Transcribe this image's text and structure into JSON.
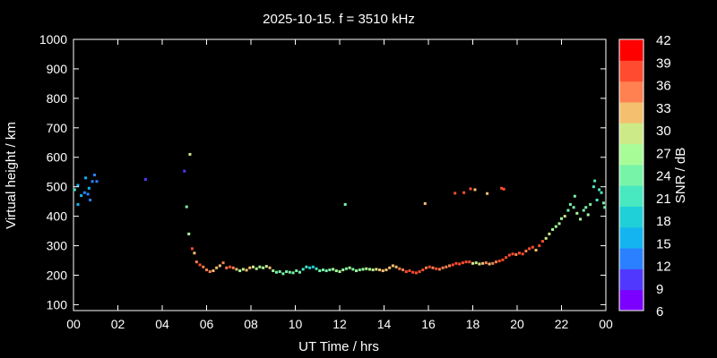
{
  "chart_data": {
    "type": "scatter",
    "title": "2025-10-15. f = 3510 kHz",
    "xlabel": "UT Time / hrs",
    "ylabel": "Virtual height / km",
    "xlim": [
      0,
      24
    ],
    "ylim": [
      80,
      1000
    ],
    "x_ticks": [
      "00",
      "02",
      "04",
      "06",
      "08",
      "10",
      "12",
      "14",
      "16",
      "18",
      "20",
      "22",
      "00"
    ],
    "y_ticks": [
      100,
      200,
      300,
      400,
      500,
      600,
      700,
      800,
      900,
      1000
    ],
    "grid": false,
    "colorbar": {
      "label": "SNR / dB",
      "range": [
        6,
        42
      ],
      "ticks": [
        6,
        9,
        12,
        15,
        18,
        21,
        24,
        27,
        30,
        33,
        36,
        39,
        42
      ],
      "colors": [
        "#7b00ff",
        "#5038ff",
        "#2a80ff",
        "#14b4f0",
        "#20d0d8",
        "#48e8c0",
        "#78f4a8",
        "#a8fc98",
        "#ccea88",
        "#f4c070",
        "#ff8050",
        "#ff4c30",
        "#ff0000"
      ]
    },
    "series": [
      {
        "points": [
          [
            0.05,
            490,
            20
          ],
          [
            0.2,
            505,
            15
          ],
          [
            0.2,
            440,
            15
          ],
          [
            0.35,
            470,
            15
          ],
          [
            0.5,
            480,
            14
          ],
          [
            0.55,
            530,
            15
          ],
          [
            0.65,
            475,
            14
          ],
          [
            0.7,
            495,
            15
          ],
          [
            0.75,
            455,
            14
          ],
          [
            0.85,
            518,
            13
          ],
          [
            0.95,
            540,
            13
          ],
          [
            1.05,
            518,
            13
          ],
          [
            3.25,
            525,
            9
          ],
          [
            5.0,
            553,
            9
          ],
          [
            5.25,
            610,
            30
          ],
          [
            5.1,
            432,
            23
          ],
          [
            5.2,
            340,
            28
          ],
          [
            5.35,
            290,
            39
          ],
          [
            5.45,
            275,
            33
          ],
          [
            5.55,
            245,
            36
          ],
          [
            5.7,
            235,
            37
          ],
          [
            5.85,
            228,
            36
          ],
          [
            6.0,
            218,
            35
          ],
          [
            6.15,
            212,
            34
          ],
          [
            6.3,
            215,
            33
          ],
          [
            6.45,
            225,
            31
          ],
          [
            6.6,
            232,
            33
          ],
          [
            6.75,
            242,
            35
          ],
          [
            6.9,
            225,
            36
          ],
          [
            7.05,
            228,
            37
          ],
          [
            7.2,
            225,
            35
          ],
          [
            7.35,
            220,
            31
          ],
          [
            7.5,
            215,
            27
          ],
          [
            7.65,
            220,
            29
          ],
          [
            7.8,
            217,
            31
          ],
          [
            7.95,
            225,
            32
          ],
          [
            8.1,
            228,
            30
          ],
          [
            8.25,
            222,
            27
          ],
          [
            8.4,
            228,
            28
          ],
          [
            8.55,
            225,
            28
          ],
          [
            8.7,
            230,
            29
          ],
          [
            8.85,
            225,
            31
          ],
          [
            9.0,
            215,
            27
          ],
          [
            9.15,
            210,
            25
          ],
          [
            9.3,
            212,
            24
          ],
          [
            9.45,
            205,
            24
          ],
          [
            9.6,
            212,
            24
          ],
          [
            9.75,
            210,
            25
          ],
          [
            9.9,
            208,
            25
          ],
          [
            10.05,
            215,
            24
          ],
          [
            10.2,
            210,
            24
          ],
          [
            10.35,
            220,
            22
          ],
          [
            10.5,
            228,
            20
          ],
          [
            10.65,
            225,
            18
          ],
          [
            10.8,
            228,
            19
          ],
          [
            10.95,
            222,
            20
          ],
          [
            11.1,
            215,
            24
          ],
          [
            11.25,
            218,
            23
          ],
          [
            11.4,
            215,
            24
          ],
          [
            11.55,
            218,
            25
          ],
          [
            11.7,
            220,
            26
          ],
          [
            11.85,
            215,
            27
          ],
          [
            12.0,
            212,
            27
          ],
          [
            12.15,
            218,
            26
          ],
          [
            12.25,
            440,
            24
          ],
          [
            12.3,
            222,
            25
          ],
          [
            12.45,
            225,
            26
          ],
          [
            12.6,
            220,
            24
          ],
          [
            12.75,
            215,
            26
          ],
          [
            12.9,
            218,
            25
          ],
          [
            13.05,
            220,
            26
          ],
          [
            13.2,
            222,
            27
          ],
          [
            13.35,
            220,
            28
          ],
          [
            13.5,
            218,
            29
          ],
          [
            13.65,
            220,
            30
          ],
          [
            13.8,
            218,
            31
          ],
          [
            13.95,
            215,
            32
          ],
          [
            14.1,
            218,
            33
          ],
          [
            14.25,
            225,
            32
          ],
          [
            14.4,
            232,
            31
          ],
          [
            14.55,
            228,
            33
          ],
          [
            14.7,
            222,
            35
          ],
          [
            14.85,
            218,
            36
          ],
          [
            15.0,
            212,
            37
          ],
          [
            15.15,
            215,
            38
          ],
          [
            15.3,
            210,
            38
          ],
          [
            15.45,
            208,
            39
          ],
          [
            15.6,
            212,
            39
          ],
          [
            15.75,
            218,
            38
          ],
          [
            15.85,
            443,
            33
          ],
          [
            15.9,
            225,
            36
          ],
          [
            16.05,
            228,
            37
          ],
          [
            16.2,
            225,
            36
          ],
          [
            16.35,
            222,
            37
          ],
          [
            16.5,
            220,
            35
          ],
          [
            16.65,
            225,
            34
          ],
          [
            16.8,
            228,
            35
          ],
          [
            16.95,
            232,
            36
          ],
          [
            17.1,
            235,
            38
          ],
          [
            17.25,
            240,
            38
          ],
          [
            17.4,
            238,
            39
          ],
          [
            17.55,
            242,
            38
          ],
          [
            17.7,
            245,
            38
          ],
          [
            17.85,
            245,
            37
          ],
          [
            17.2,
            478,
            39
          ],
          [
            17.6,
            480,
            38
          ],
          [
            17.9,
            493,
            39
          ],
          [
            18.1,
            490,
            33
          ],
          [
            18.0,
            240,
            30
          ],
          [
            18.15,
            242,
            29
          ],
          [
            18.3,
            238,
            30
          ],
          [
            18.45,
            240,
            32
          ],
          [
            18.6,
            242,
            34
          ],
          [
            18.75,
            238,
            33
          ],
          [
            18.9,
            240,
            35
          ],
          [
            18.65,
            477,
            31
          ],
          [
            19.05,
            245,
            36
          ],
          [
            19.2,
            248,
            37
          ],
          [
            19.3,
            495,
            39
          ],
          [
            19.4,
            492,
            38
          ],
          [
            19.35,
            252,
            38
          ],
          [
            19.5,
            260,
            37
          ],
          [
            19.65,
            268,
            38
          ],
          [
            19.8,
            272,
            37
          ],
          [
            19.95,
            270,
            36
          ],
          [
            20.1,
            275,
            38
          ],
          [
            20.25,
            272,
            37
          ],
          [
            20.4,
            282,
            36
          ],
          [
            20.55,
            290,
            38
          ],
          [
            20.7,
            295,
            39
          ],
          [
            20.85,
            285,
            33
          ],
          [
            21.0,
            300,
            38
          ],
          [
            21.15,
            315,
            37
          ],
          [
            21.3,
            325,
            30
          ],
          [
            21.45,
            340,
            29
          ],
          [
            21.6,
            355,
            28
          ],
          [
            21.75,
            365,
            27
          ],
          [
            21.9,
            375,
            26
          ],
          [
            22.0,
            392,
            28
          ],
          [
            22.15,
            400,
            29
          ],
          [
            22.3,
            420,
            25
          ],
          [
            22.4,
            440,
            24
          ],
          [
            22.55,
            430,
            24
          ],
          [
            22.6,
            468,
            23
          ],
          [
            22.7,
            410,
            26
          ],
          [
            22.85,
            390,
            27
          ],
          [
            23.0,
            420,
            25
          ],
          [
            23.1,
            430,
            24
          ],
          [
            23.2,
            405,
            26
          ],
          [
            23.3,
            440,
            23
          ],
          [
            23.45,
            500,
            22
          ],
          [
            23.5,
            520,
            22
          ],
          [
            23.6,
            455,
            22
          ],
          [
            23.7,
            490,
            22
          ],
          [
            23.8,
            480,
            21
          ],
          [
            23.9,
            445,
            23
          ],
          [
            23.95,
            430,
            24
          ]
        ]
      }
    ]
  }
}
